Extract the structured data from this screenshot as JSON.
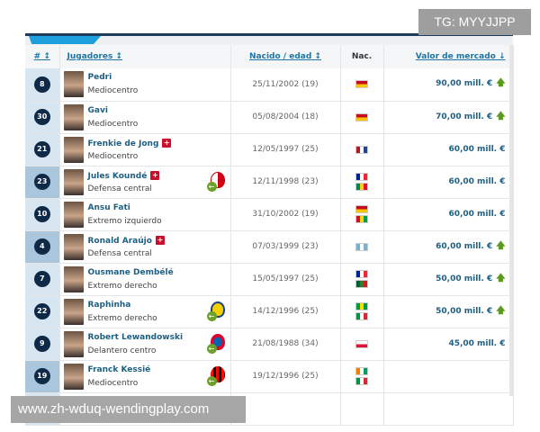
{
  "watermark_top": "TG: MYYJJPP",
  "watermark_bottom": "www.zh-wduq-wendingplay.com",
  "columns": {
    "number": "# ↕",
    "players": "Jugadores ↕",
    "born": "Nacido / edad ↕",
    "nat": "Nac.",
    "value": "Valor de mercado ↓"
  },
  "colors": {
    "accent": "#1ea0dc",
    "header_bar": "#1d3c5a",
    "badge": "#0f2a47",
    "link": "#1d5f83",
    "up_arrow": "#5a9a1e",
    "injury": "#c8102e"
  },
  "rows": [
    {
      "number": "8",
      "name": "Pedri",
      "position": "Mediocentro",
      "born": "25/11/2002 (19)",
      "flags": [
        "#c60b1e|#ffc400"
      ],
      "value": "90,00 mill. €",
      "trend": "up",
      "injury": false,
      "club": null
    },
    {
      "number": "30",
      "name": "Gavi",
      "position": "Mediocentro",
      "born": "05/08/2004 (18)",
      "flags": [
        "#c60b1e|#ffc400"
      ],
      "value": "70,00 mill. €",
      "trend": "up",
      "injury": false,
      "club": null
    },
    {
      "number": "21",
      "name": "Frenkie de Jong",
      "position": "Mediocentro",
      "born": "12/05/1997 (25)",
      "flags": [
        "#ae1c28|#ffffff|#21468b"
      ],
      "value": "60,00 mill. €",
      "trend": "",
      "injury": true,
      "club": null
    },
    {
      "number": "23",
      "name": "Jules Koundé",
      "position": "Defensa central",
      "born": "12/11/1998 (23)",
      "flags": [
        "#002395|#ffffff|#ed2939",
        "#008751|#fcd116|#e8112d"
      ],
      "value": "60,00 mill. €",
      "trend": "",
      "injury": true,
      "club": "sevilla-crest-icon",
      "dark": true
    },
    {
      "number": "10",
      "name": "Ansu Fati",
      "position": "Extremo izquierdo",
      "born": "31/10/2002 (19)",
      "flags": [
        "#c60b1e|#ffc400",
        "#ce1126|#fcd116|#009e49"
      ],
      "value": "60,00 mill. €",
      "trend": "",
      "injury": false,
      "club": null
    },
    {
      "number": "4",
      "name": "Ronald Araújo",
      "position": "Defensa central",
      "born": "07/03/1999 (23)",
      "flags": [
        "#7bafd4|#ffffff|#7bafd4"
      ],
      "value": "60,00 mill. €",
      "trend": "up",
      "injury": true,
      "club": null,
      "dark": true
    },
    {
      "number": "7",
      "name": "Ousmane Dembélé",
      "position": "Extremo derecho",
      "born": "15/05/1997 (25)",
      "flags": [
        "#002395|#ffffff|#ed2939",
        "#006233|#2e7d32|#d01c1f"
      ],
      "value": "50,00 mill. €",
      "trend": "up",
      "injury": false,
      "club": null
    },
    {
      "number": "22",
      "name": "Raphinha",
      "position": "Extremo derecho",
      "born": "14/12/1996 (25)",
      "flags": [
        "#009c3b|#ffdf00|#009c3b",
        "#009246|#ffffff|#ce2b37"
      ],
      "value": "50,00 mill. €",
      "trend": "up",
      "injury": false,
      "club": "leeds-crest-icon"
    },
    {
      "number": "9",
      "name": "Robert Lewandowski",
      "position": "Delantero centro",
      "born": "21/08/1988 (34)",
      "flags": [
        "#ffffff|#dc143c"
      ],
      "value": "45,00 mill. €",
      "trend": "",
      "injury": false,
      "club": "bayern-crest-icon"
    },
    {
      "number": "19",
      "name": "Franck Kessié",
      "position": "Mediocentro",
      "born": "19/12/1996 (25)",
      "flags": [
        "#f77f00|#ffffff|#009e60",
        "#009246|#ffffff|#ce2b37"
      ],
      "value": "",
      "trend": "",
      "injury": false,
      "club": "milan-crest-icon",
      "dark": true
    }
  ]
}
